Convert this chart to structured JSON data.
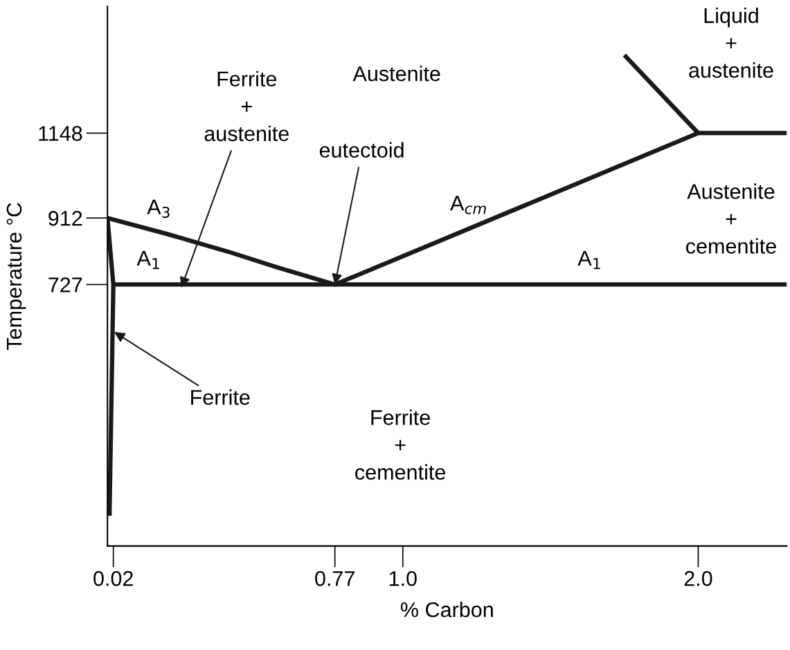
{
  "chart_data": {
    "type": "line",
    "xlabel": "% Carbon",
    "ylabel": "Temperature °C",
    "xlim": [
      0,
      2.3
    ],
    "ylim": [
      0,
      1500
    ],
    "xticks": [
      0.02,
      0.77,
      {
        "value": 1.0,
        "label": "1.0"
      },
      {
        "value": 2.0,
        "label": "2.0"
      }
    ],
    "yticks": [
      727,
      912,
      1148
    ],
    "grid": false,
    "legend": false,
    "marker": "none",
    "line_style": "solid",
    "series": [
      {
        "color": "#1a1a1a",
        "x": [
          0,
          0.2,
          0.41,
          0.57,
          0.77,
          2.0,
          2.3
        ],
        "values": [
          912,
          868,
          818,
          776,
          727,
          1148,
          1148
        ]
      },
      {
        "color": "#1a1a1a",
        "x": [
          0,
          0.02,
          0.007
        ],
        "values": [
          912,
          727,
          84
        ]
      },
      {
        "color": "#1a1a1a",
        "x": [
          0.02,
          2.3
        ],
        "values": [
          727,
          727
        ]
      },
      {
        "color": "#1a1a1a",
        "x": [
          1.75,
          2.0
        ],
        "values": [
          1365,
          1148
        ]
      }
    ],
    "annotations": [
      "Austenite",
      {
        "text": "Ferrite\n+\naustenite",
        "x": 0.25,
        "y": 718
      },
      {
        "text": "eutectoid",
        "x": 0.77,
        "y": 727
      },
      {
        "text": "Ferrite",
        "x": 0.023,
        "y": 595
      },
      "A$_{3}$",
      "A$_{1}$",
      "A$_{cm}$",
      "A$_{1}$",
      "Liquid\n+\naustenite",
      "Austenite\n+\ncementite",
      "Ferrite\n+\ncementite"
    ]
  }
}
